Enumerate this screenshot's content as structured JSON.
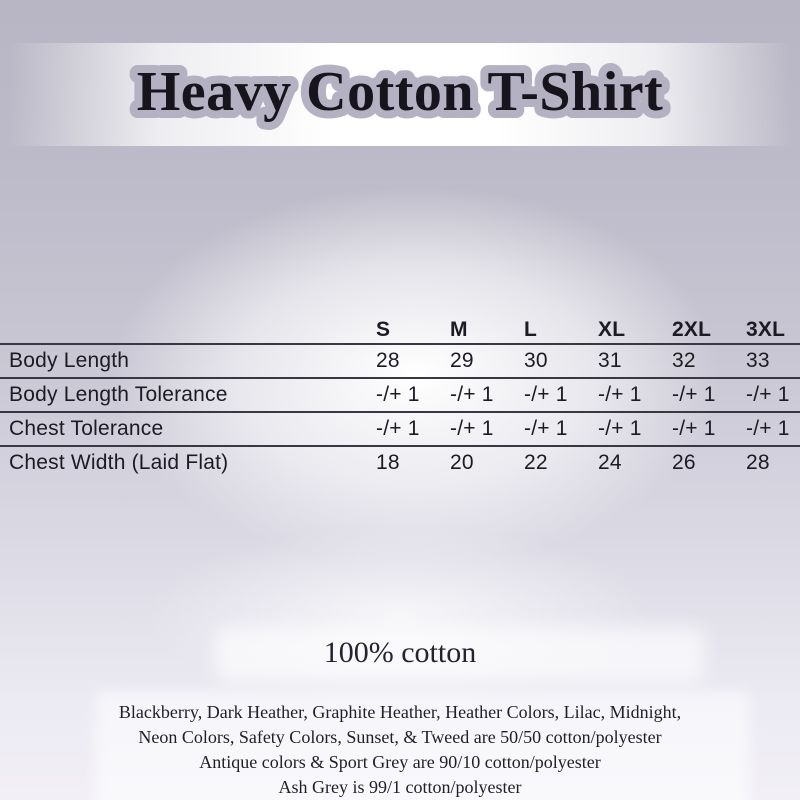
{
  "title": {
    "text": "Heavy Cotton T-Shirt"
  },
  "size_table": {
    "columns": [
      "S",
      "M",
      "L",
      "XL",
      "2XL",
      "3XL"
    ],
    "rows": [
      {
        "label": "Body Length",
        "values": [
          "28",
          "29",
          "30",
          "31",
          "32",
          "33"
        ]
      },
      {
        "label": "Body Length Tolerance",
        "values": [
          "-/+ 1",
          "-/+ 1",
          "-/+ 1",
          "-/+ 1",
          "-/+ 1",
          "-/+ 1"
        ]
      },
      {
        "label": "Chest Tolerance",
        "values": [
          "-/+ 1",
          "-/+ 1",
          "-/+ 1",
          "-/+ 1",
          "-/+ 1",
          "-/+ 1"
        ]
      },
      {
        "label": "Chest Width (Laid Flat)",
        "values": [
          "18",
          "20",
          "22",
          "24",
          "26",
          "28"
        ]
      }
    ]
  },
  "material": {
    "headline": "100% cotton"
  },
  "fabric_notes": {
    "lines": [
      "Blackberry, Dark Heather, Graphite Heather, Heather Colors, Lilac, Midnight,",
      "Neon Colors, Safety Colors, Sunset, & Tweed are 50/50 cotton/polyester",
      "Antique colors & Sport Grey are 90/10 cotton/polyester",
      "Ash Grey is 99/1 cotton/polyester"
    ]
  },
  "colors": {
    "background_edge": "#b9b7c5",
    "background_center": "#ffffff",
    "title_fill": "#17141d",
    "title_outline": "#b4b2c2",
    "table_text": "#1c1a22",
    "table_line": "#393741",
    "notes_text": "#211e27"
  }
}
